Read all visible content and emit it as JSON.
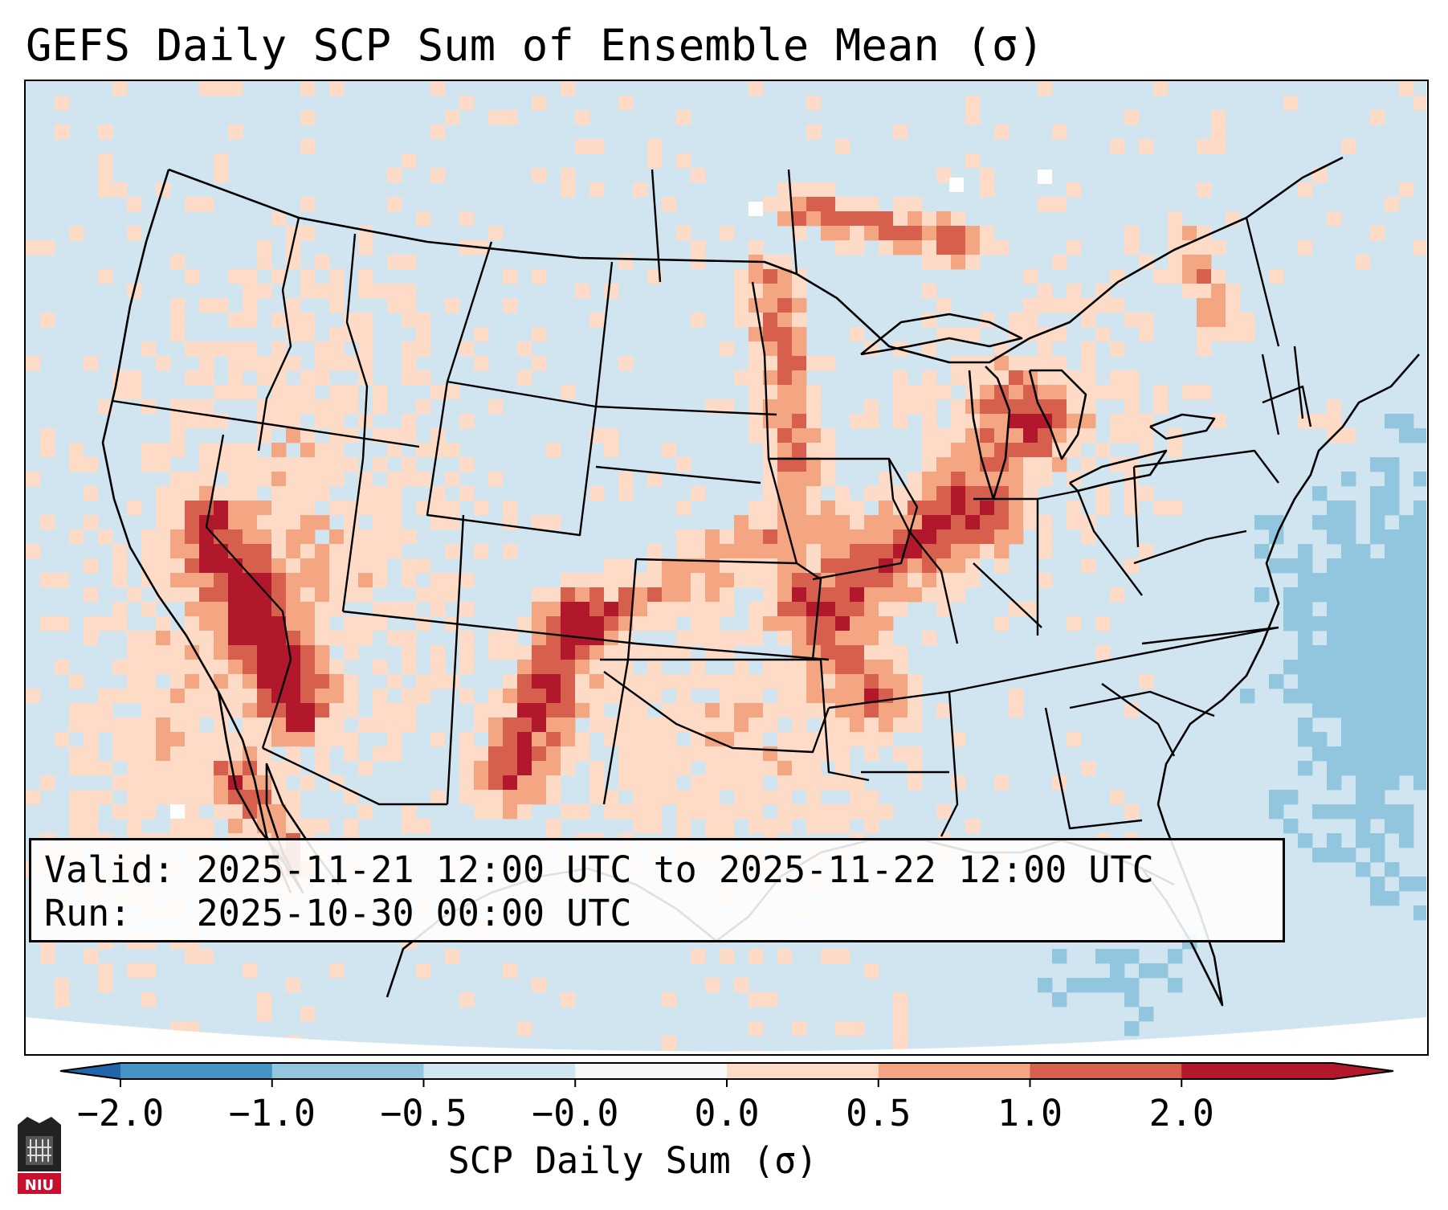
{
  "title": "GEFS Daily SCP Sum of Ensemble Mean (σ)",
  "info": {
    "valid_line": "Valid: 2025-11-21 12:00 UTC to 2025-11-22 12:00 UTC",
    "run_line": "Run:   2025-10-30 00:00 UTC"
  },
  "colorbar": {
    "label": "SCP Daily Sum (σ)",
    "bins": [
      "#4393c3",
      "#92c5de",
      "#d1e5f0",
      "#f7f7f7",
      "#fddbc7",
      "#f4a582",
      "#d6604d",
      "#b2182b"
    ],
    "under_color": "#2166ac",
    "over_color": "#b2182b",
    "ticks": [
      "−2.0",
      "−1.0",
      "−0.5",
      "−0.0",
      "0.0",
      "0.5",
      "1.0",
      "2.0"
    ]
  },
  "map": {
    "variable": "SCP Daily Sum (σ)",
    "background_color": "#d1e5f0",
    "ocean_low_color": "#92c5de",
    "missing_color": "#ffffff",
    "line_color": "#000000"
  },
  "logo": {
    "text": "NIU",
    "color": "#c8102e"
  }
}
